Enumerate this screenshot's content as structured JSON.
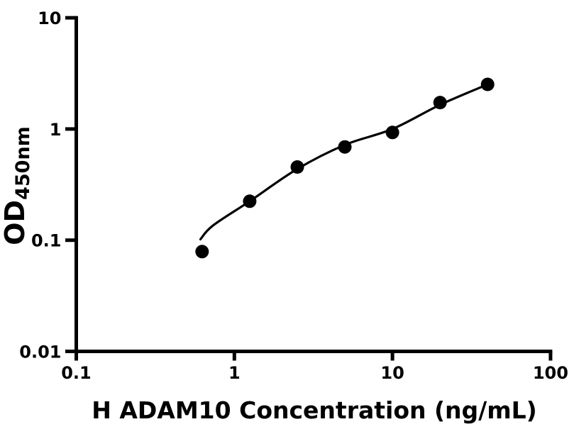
{
  "figure": {
    "background": "#ffffff"
  },
  "chart_data": {
    "type": "scatter",
    "title": "",
    "xlabel": "H ADAM10 Concentration (ng/mL)",
    "ylabel_main": "OD",
    "ylabel_sub": "450nm",
    "x_scale": "log",
    "y_scale": "log",
    "xlim": [
      0.1,
      100
    ],
    "ylim": [
      0.01,
      10
    ],
    "grid": false,
    "legend": false,
    "x_ticks": [
      {
        "value": 0.1,
        "label": "0.1"
      },
      {
        "value": 1,
        "label": "1"
      },
      {
        "value": 10,
        "label": "10"
      },
      {
        "value": 100,
        "label": "100"
      }
    ],
    "y_ticks": [
      {
        "value": 0.01,
        "label": "0.01"
      },
      {
        "value": 0.1,
        "label": "0.1"
      },
      {
        "value": 1,
        "label": "1"
      },
      {
        "value": 10,
        "label": "10"
      }
    ],
    "series": [
      {
        "name": "standard-curve-points",
        "marker": "filled-circle",
        "marker_radius": 9.5,
        "color": "#000000",
        "points": [
          [
            0.625,
            0.079
          ],
          [
            1.25,
            0.224
          ],
          [
            2.5,
            0.455
          ],
          [
            5,
            0.69
          ],
          [
            10,
            0.93
          ],
          [
            20,
            1.73
          ],
          [
            40,
            2.52
          ]
        ]
      }
    ],
    "fit_curve": {
      "name": "four-parameter-logistic-fit",
      "color": "#000000",
      "samples": [
        [
          0.61,
          0.102
        ],
        [
          0.73,
          0.135
        ],
        [
          1.25,
          0.224
        ],
        [
          2.5,
          0.437
        ],
        [
          5,
          0.72
        ],
        [
          10,
          1.0
        ],
        [
          20,
          1.65
        ],
        [
          40,
          2.52
        ]
      ]
    },
    "colors": {
      "axis": "#000000",
      "curve": "#000000",
      "marker": "#000000",
      "background": "#ffffff"
    }
  }
}
